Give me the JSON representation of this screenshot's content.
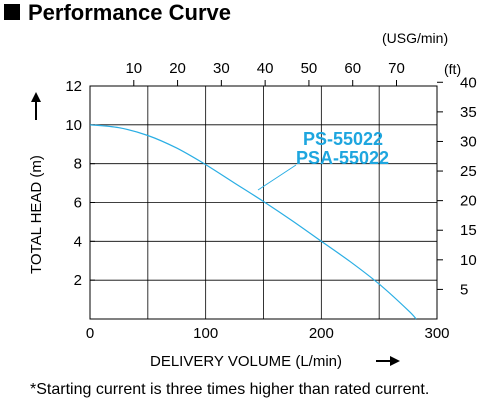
{
  "header": {
    "title": "Performance Curve"
  },
  "footnote": "*Starting current is three times higher than rated current.",
  "colors": {
    "curve": "#2aaee4",
    "model_label": "#1ea6df",
    "grid": "#000000",
    "title_square": "#000000"
  },
  "chart_data": {
    "type": "line",
    "title": "Performance Curve",
    "xlabel": "DELIVERY VOLUME (L/min)",
    "ylabel": "TOTAL HEAD (m)",
    "x2label": "(USG/min)",
    "y2label": "(ft)",
    "xlim": [
      0,
      300
    ],
    "ylim": [
      0,
      12
    ],
    "x_ticks": [
      0,
      100,
      200,
      300
    ],
    "y_ticks": [
      2,
      4,
      6,
      8,
      10,
      12
    ],
    "x2_ticks": [
      10,
      20,
      30,
      40,
      50,
      60,
      70
    ],
    "y2_ticks": [
      5,
      10,
      15,
      20,
      25,
      30,
      35,
      40
    ],
    "grid": true,
    "series": [
      {
        "name": "PS-55022 PSA-55022",
        "labels": [
          "PS-55022",
          "PSA-55022"
        ],
        "x": [
          0,
          25,
          50,
          75,
          100,
          125,
          150,
          175,
          200,
          225,
          250,
          275,
          282
        ],
        "y": [
          10.0,
          9.85,
          9.45,
          8.8,
          7.95,
          7.0,
          6.05,
          5.05,
          4.0,
          2.95,
          1.8,
          0.45,
          0.0
        ]
      }
    ]
  }
}
